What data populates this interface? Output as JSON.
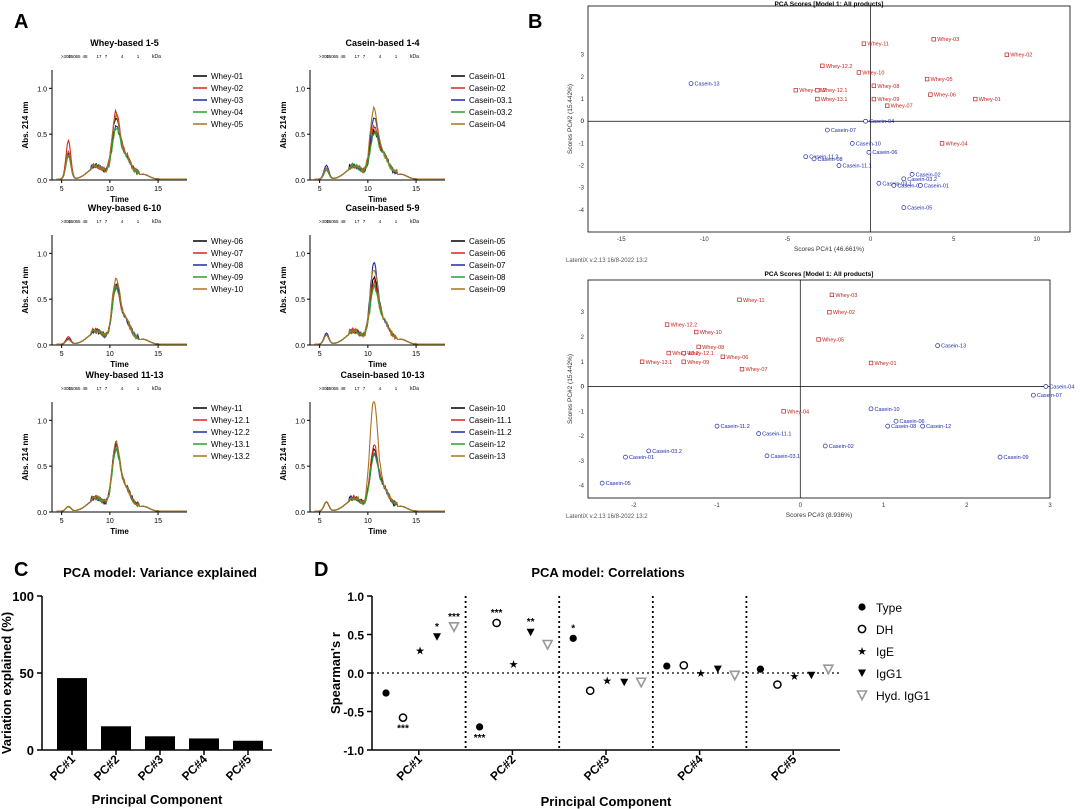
{
  "panels": {
    "A": "A",
    "B": "B",
    "C": "C",
    "D": "D"
  },
  "spectra": {
    "ylabel": "Abs. 214 nm",
    "xlabel": "Time",
    "y_ticks": [
      "0.0",
      "0.5",
      "1.0"
    ],
    "x_ticks": [
      "5",
      "10",
      "15"
    ],
    "kda_label": "kDa",
    "kda_markers": [
      ">300",
      "150",
      "65",
      "48",
      "17",
      "7",
      "4",
      "1"
    ],
    "charts": [
      {
        "title": "Whey-based 1-5",
        "legend": [
          "Whey-01",
          "Whey-02",
          "Whey-03",
          "Whey-04",
          "Whey-05"
        ],
        "peaks": [
          0.3,
          0.42,
          0.28,
          0.25,
          0.3
        ],
        "main": [
          0.55,
          0.6,
          0.45,
          0.42,
          0.58
        ]
      },
      {
        "title": "Casein-based 1-4",
        "legend": [
          "Casein-01",
          "Casein-02",
          "Casein-03.1",
          "Casein-03.2",
          "Casein-04"
        ],
        "peaks": [
          0.1,
          0.12,
          0.15,
          0.1,
          0.12
        ],
        "main": [
          0.4,
          0.45,
          0.55,
          0.38,
          0.65
        ]
      },
      {
        "title": "Whey-based 6-10",
        "legend": [
          "Whey-06",
          "Whey-07",
          "Whey-08",
          "Whey-09",
          "Whey-10"
        ],
        "peaks": [
          0.05,
          0.08,
          0.06,
          0.05,
          0.05
        ],
        "main": [
          0.5,
          0.48,
          0.55,
          0.5,
          0.6
        ]
      },
      {
        "title": "Casein-based 5-9",
        "legend": [
          "Casein-05",
          "Casein-06",
          "Casein-07",
          "Casein-08",
          "Casein-09"
        ],
        "peaks": [
          0.1,
          0.1,
          0.12,
          0.1,
          0.1
        ],
        "main": [
          0.6,
          0.55,
          0.75,
          0.5,
          0.7
        ]
      },
      {
        "title": "Whey-based 11-13",
        "legend": [
          "Whey-11",
          "Whey-12.1",
          "Whey-12.2",
          "Whey-13.1",
          "Whey-13.2"
        ],
        "peaks": [
          0.05,
          0.05,
          0.05,
          0.05,
          0.05
        ],
        "main": [
          0.6,
          0.58,
          0.6,
          0.55,
          0.62
        ]
      },
      {
        "title": "Casein-based 10-13",
        "legend": [
          "Casein-10",
          "Casein-11.1",
          "Casein-11.2",
          "Casein-12",
          "Casein-13"
        ],
        "peaks": [
          0.1,
          0.1,
          0.1,
          0.1,
          0.1
        ],
        "main": [
          0.55,
          0.6,
          0.5,
          0.5,
          1.1
        ]
      }
    ],
    "colors": [
      "#000000",
      "#e0231f",
      "#1e2aa8",
      "#2aa12a",
      "#a8721f"
    ]
  },
  "pca_top": {
    "title": "PCA Scores [Model 1: All products]",
    "xlabel": "Scores PC#1 (46.661%)",
    "ylabel": "Scores PC#2 (15.442%)",
    "footer": "LatentiX v.2.13 16/8-2022  13:2",
    "x_ticks": [
      "-15",
      "-10",
      "-5",
      "0",
      "5",
      "10"
    ],
    "y_ticks": [
      "3",
      "2",
      "1",
      "0",
      "-1",
      "-2",
      "-3",
      "-4"
    ],
    "x_range": [
      -17,
      12
    ],
    "y_range": [
      -5,
      5.2
    ],
    "points": [
      {
        "label": "Whey-03",
        "x": 3.8,
        "y": 3.7,
        "g": "w"
      },
      {
        "label": "Whey-11",
        "x": -0.4,
        "y": 3.5,
        "g": "w"
      },
      {
        "label": "Whey-02",
        "x": 8.2,
        "y": 3.0,
        "g": "w"
      },
      {
        "label": "Whey-12.2",
        "x": -2.9,
        "y": 2.5,
        "g": "w"
      },
      {
        "label": "Whey-10",
        "x": -0.7,
        "y": 2.2,
        "g": "w"
      },
      {
        "label": "Whey-05",
        "x": 3.4,
        "y": 1.9,
        "g": "w"
      },
      {
        "label": "Whey-08",
        "x": 0.2,
        "y": 1.6,
        "g": "w"
      },
      {
        "label": "Whey-13.2",
        "x": -4.5,
        "y": 1.4,
        "g": "w"
      },
      {
        "label": "Whey-12.1",
        "x": -3.2,
        "y": 1.4,
        "g": "w"
      },
      {
        "label": "Whey-06",
        "x": 3.6,
        "y": 1.2,
        "g": "w"
      },
      {
        "label": "Whey-13.1",
        "x": -3.2,
        "y": 1.0,
        "g": "w"
      },
      {
        "label": "Whey-09",
        "x": 0.2,
        "y": 1.0,
        "g": "w"
      },
      {
        "label": "Whey-01",
        "x": 6.3,
        "y": 1.0,
        "g": "w"
      },
      {
        "label": "Whey-07",
        "x": 1.0,
        "y": 0.7,
        "g": "w"
      },
      {
        "label": "Whey-04",
        "x": 4.3,
        "y": -1.0,
        "g": "w"
      },
      {
        "label": "Casein-13",
        "x": -10.8,
        "y": 1.7,
        "g": "c"
      },
      {
        "label": "Casein-04",
        "x": -0.3,
        "y": 0.0,
        "g": "c"
      },
      {
        "label": "Casein-07",
        "x": -2.6,
        "y": -0.4,
        "g": "c"
      },
      {
        "label": "Casein-10",
        "x": -1.1,
        "y": -1.0,
        "g": "c"
      },
      {
        "label": "Casein-06",
        "x": -0.1,
        "y": -1.4,
        "g": "c"
      },
      {
        "label": "Casein-11.2",
        "x": -3.9,
        "y": -1.6,
        "g": "c"
      },
      {
        "label": "Casein-08",
        "x": -3.4,
        "y": -1.7,
        "g": "c"
      },
      {
        "label": "Casein-11.1",
        "x": -1.9,
        "y": -2.0,
        "g": "c"
      },
      {
        "label": "Casein-02",
        "x": 2.5,
        "y": -2.4,
        "g": "c"
      },
      {
        "label": "Casein-03.2",
        "x": 2.0,
        "y": -2.6,
        "g": "c"
      },
      {
        "label": "Casein-03.1",
        "x": 0.5,
        "y": -2.8,
        "g": "c"
      },
      {
        "label": "Casein-09",
        "x": 1.4,
        "y": -2.9,
        "g": "c"
      },
      {
        "label": "Casein-01",
        "x": 3.0,
        "y": -2.9,
        "g": "c"
      },
      {
        "label": "Casein-05",
        "x": 2.0,
        "y": -3.9,
        "g": "c"
      }
    ]
  },
  "pca_bottom": {
    "title": "PCA Scores [Model 1: All products]",
    "xlabel": "Scores PC#3 (8.936%)",
    "ylabel": "Scores PC#2 (15.442%)",
    "footer": "LatentiX v.2.13 16/8-2022  13:2",
    "x_ticks": [
      "-2",
      "-1",
      "0",
      "1",
      "2",
      "3"
    ],
    "y_ticks": [
      "3",
      "2",
      "1",
      "0",
      "-1",
      "-2",
      "-3",
      "-4"
    ],
    "x_range": [
      -2.55,
      3.0
    ],
    "y_range": [
      -4.5,
      4.3
    ],
    "points": [
      {
        "label": "Whey-03",
        "x": 0.38,
        "y": 3.7,
        "g": "w"
      },
      {
        "label": "Whey-11",
        "x": -0.73,
        "y": 3.5,
        "g": "w"
      },
      {
        "label": "Whey-02",
        "x": 0.35,
        "y": 3.0,
        "g": "w"
      },
      {
        "label": "Whey-12.2",
        "x": -1.6,
        "y": 2.5,
        "g": "w"
      },
      {
        "label": "Whey-10",
        "x": -1.25,
        "y": 2.2,
        "g": "w"
      },
      {
        "label": "Whey-05",
        "x": 0.22,
        "y": 1.9,
        "g": "w"
      },
      {
        "label": "Whey-08",
        "x": -1.22,
        "y": 1.6,
        "g": "w"
      },
      {
        "label": "Whey-13.2",
        "x": -1.58,
        "y": 1.35,
        "g": "w"
      },
      {
        "label": "Whey-12.1",
        "x": -1.4,
        "y": 1.35,
        "g": "w"
      },
      {
        "label": "Whey-06",
        "x": -0.93,
        "y": 1.2,
        "g": "w"
      },
      {
        "label": "Whey-13.1",
        "x": -1.9,
        "y": 1.0,
        "g": "w"
      },
      {
        "label": "Whey-09",
        "x": -1.4,
        "y": 1.0,
        "g": "w"
      },
      {
        "label": "Whey-01",
        "x": 0.85,
        "y": 0.95,
        "g": "w"
      },
      {
        "label": "Whey-07",
        "x": -0.7,
        "y": 0.7,
        "g": "w"
      },
      {
        "label": "Whey-04",
        "x": -0.2,
        "y": -1.0,
        "g": "w"
      },
      {
        "label": "Casein-13",
        "x": 1.65,
        "y": 1.65,
        "g": "c"
      },
      {
        "label": "Casein-04",
        "x": 2.95,
        "y": 0.0,
        "g": "c"
      },
      {
        "label": "Casein-07",
        "x": 2.8,
        "y": -0.35,
        "g": "c"
      },
      {
        "label": "Casein-10",
        "x": 0.85,
        "y": -0.9,
        "g": "c"
      },
      {
        "label": "Casein-06",
        "x": 1.15,
        "y": -1.4,
        "g": "c"
      },
      {
        "label": "Casein-08",
        "x": 1.05,
        "y": -1.6,
        "g": "c"
      },
      {
        "label": "Casein-12",
        "x": 1.47,
        "y": -1.6,
        "g": "c"
      },
      {
        "label": "Casein-11.2",
        "x": -1.0,
        "y": -1.6,
        "g": "c"
      },
      {
        "label": "Casein-11.1",
        "x": -0.5,
        "y": -1.9,
        "g": "c"
      },
      {
        "label": "Casein-02",
        "x": 0.3,
        "y": -2.4,
        "g": "c"
      },
      {
        "label": "Casein-03.2",
        "x": -1.82,
        "y": -2.6,
        "g": "c"
      },
      {
        "label": "Casein-01",
        "x": -2.1,
        "y": -2.85,
        "g": "c"
      },
      {
        "label": "Casein-03.1",
        "x": -0.4,
        "y": -2.8,
        "g": "c"
      },
      {
        "label": "Casein-09",
        "x": 2.4,
        "y": -2.85,
        "g": "c"
      },
      {
        "label": "Casein-05",
        "x": -2.38,
        "y": -3.9,
        "g": "c"
      }
    ]
  },
  "chart_data": [
    {
      "type": "bar",
      "title": "PCA model: Variance explained",
      "xlabel": "Principal Component",
      "ylabel": "Variation explained (%)",
      "categories": [
        "PC#1",
        "PC#2",
        "PC#3",
        "PC#4",
        "PC#5"
      ],
      "values": [
        46.7,
        15.4,
        8.9,
        7.5,
        6.0
      ],
      "ylim": [
        0,
        100
      ],
      "y_ticks": [
        "0",
        "50",
        "100"
      ]
    },
    {
      "type": "scatter",
      "title": "PCA model: Correlations",
      "xlabel": "Principal Component",
      "ylabel": "Spearman's r",
      "categories": [
        "PC#1",
        "PC#2",
        "PC#3",
        "PC#4",
        "PC#5"
      ],
      "ylim": [
        -1.0,
        1.0
      ],
      "y_ticks": [
        "1.0",
        "0.5",
        "0.0",
        "-0.5",
        "-1.0"
      ],
      "series": [
        {
          "name": "Type",
          "values": [
            -0.26,
            -0.7,
            0.45,
            0.09,
            0.05
          ],
          "sig": [
            "",
            "***",
            "*",
            "",
            ""
          ]
        },
        {
          "name": "DH",
          "values": [
            -0.58,
            0.65,
            -0.23,
            0.1,
            -0.15
          ],
          "sig": [
            "***",
            "***",
            "",
            "",
            ""
          ]
        },
        {
          "name": "IgE",
          "values": [
            0.29,
            0.12,
            -0.1,
            0.0,
            -0.04
          ],
          "sig": [
            "",
            "",
            "",
            "",
            ""
          ]
        },
        {
          "name": "IgG1",
          "values": [
            0.47,
            0.53,
            -0.12,
            0.05,
            -0.03
          ],
          "sig": [
            "*",
            "**",
            "",
            "",
            ""
          ]
        },
        {
          "name": "Hyd. IgG1",
          "values": [
            0.6,
            0.37,
            -0.12,
            -0.03,
            0.05
          ],
          "sig": [
            "***",
            "",
            "",
            "",
            ""
          ]
        }
      ]
    }
  ]
}
